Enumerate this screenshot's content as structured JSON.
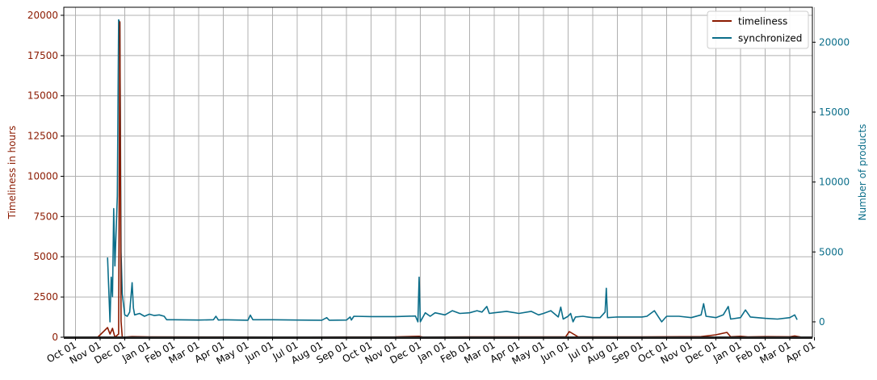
{
  "chart_data": {
    "type": "line",
    "title": "",
    "xlabel": "",
    "ylabel_left": "Timeliness in hours",
    "ylabel_right": "Number of products",
    "grid": true,
    "legend_position": "top-right",
    "x_ticks": [
      "Oct 01",
      "Nov 01",
      "Dec 01",
      "Jan 01",
      "Feb 01",
      "Mar 01",
      "Apr 01",
      "May 01",
      "Jun 01",
      "Jul 01",
      "Aug 01",
      "Sep 01",
      "Oct 01",
      "Nov 01",
      "Dec 01",
      "Jan 01",
      "Feb 01",
      "Mar 01",
      "Apr 01",
      "May 01",
      "Jun 01",
      "Jul 01",
      "Aug 01",
      "Sep 01",
      "Oct 01",
      "Nov 01",
      "Dec 01",
      "Jan 01",
      "Feb 01",
      "Mar 01",
      "Apr 01"
    ],
    "y_left": {
      "lim": [
        0,
        20500
      ],
      "ticks": [
        0,
        2500,
        5000,
        7500,
        10000,
        12500,
        15000,
        17500,
        20000
      ],
      "tick_labels": [
        "0",
        "2500",
        "5000",
        "7500",
        "10000",
        "12500",
        "15000",
        "17500",
        "20000"
      ],
      "color": "#8b1a00"
    },
    "y_right": {
      "lim": [
        -1100,
        22500
      ],
      "ticks": [
        0,
        5000,
        10000,
        15000,
        20000
      ],
      "tick_labels": [
        "0",
        "5000",
        "10000",
        "15000",
        "20000"
      ],
      "color": "#0b6e8a"
    },
    "series": [
      {
        "name": "timeliness",
        "axis": "left",
        "color": "#8b1a00",
        "points": [
          [
            0.9,
            0
          ],
          [
            1.3,
            600
          ],
          [
            1.4,
            200
          ],
          [
            1.5,
            550
          ],
          [
            1.6,
            0
          ],
          [
            1.75,
            200
          ],
          [
            1.8,
            19600
          ],
          [
            1.85,
            1000
          ],
          [
            1.9,
            0
          ],
          [
            2.3,
            40
          ],
          [
            3,
            20
          ],
          [
            6,
            15
          ],
          [
            8,
            10
          ],
          [
            11,
            15
          ],
          [
            13,
            20
          ],
          [
            13.95,
            60
          ],
          [
            14.1,
            10
          ],
          [
            16,
            20
          ],
          [
            18,
            25
          ],
          [
            19.9,
            20
          ],
          [
            20.05,
            350
          ],
          [
            20.4,
            30
          ],
          [
            21,
            20
          ],
          [
            23,
            25
          ],
          [
            25.4,
            40
          ],
          [
            26,
            150
          ],
          [
            26.45,
            300
          ],
          [
            26.6,
            30
          ],
          [
            27,
            60
          ],
          [
            27.3,
            20
          ],
          [
            28,
            40
          ],
          [
            29,
            30
          ],
          [
            29.2,
            80
          ],
          [
            29.5,
            0
          ]
        ]
      },
      {
        "name": "synchronized",
        "axis": "right",
        "color": "#0b6e8a",
        "points": [
          [
            1.3,
            4600
          ],
          [
            1.4,
            0
          ],
          [
            1.45,
            3200
          ],
          [
            1.5,
            1800
          ],
          [
            1.55,
            8100
          ],
          [
            1.6,
            4000
          ],
          [
            1.7,
            9000
          ],
          [
            1.75,
            21600
          ],
          [
            1.8,
            21400
          ],
          [
            1.85,
            5000
          ],
          [
            1.9,
            2000
          ],
          [
            2.0,
            500
          ],
          [
            2.1,
            400
          ],
          [
            2.2,
            700
          ],
          [
            2.3,
            2800
          ],
          [
            2.35,
            1000
          ],
          [
            2.4,
            500
          ],
          [
            2.6,
            600
          ],
          [
            2.8,
            400
          ],
          [
            3.0,
            550
          ],
          [
            3.2,
            450
          ],
          [
            3.4,
            500
          ],
          [
            3.6,
            400
          ],
          [
            3.7,
            150
          ],
          [
            4,
            150
          ],
          [
            5,
            130
          ],
          [
            5.6,
            150
          ],
          [
            5.7,
            400
          ],
          [
            5.8,
            130
          ],
          [
            6,
            150
          ],
          [
            7,
            120
          ],
          [
            7.1,
            480
          ],
          [
            7.2,
            150
          ],
          [
            8,
            150
          ],
          [
            9,
            130
          ],
          [
            10,
            120
          ],
          [
            10.2,
            300
          ],
          [
            10.3,
            120
          ],
          [
            11,
            130
          ],
          [
            11.15,
            350
          ],
          [
            11.2,
            130
          ],
          [
            11.3,
            400
          ],
          [
            12,
            380
          ],
          [
            13,
            380
          ],
          [
            13.8,
            420
          ],
          [
            13.9,
            0
          ],
          [
            13.95,
            3200
          ],
          [
            14.0,
            0
          ],
          [
            14.2,
            650
          ],
          [
            14.4,
            400
          ],
          [
            14.6,
            650
          ],
          [
            15,
            500
          ],
          [
            15.3,
            800
          ],
          [
            15.6,
            600
          ],
          [
            16,
            650
          ],
          [
            16.3,
            800
          ],
          [
            16.5,
            700
          ],
          [
            16.7,
            1100
          ],
          [
            16.8,
            600
          ],
          [
            17,
            650
          ],
          [
            17.5,
            750
          ],
          [
            18,
            600
          ],
          [
            18.5,
            750
          ],
          [
            18.8,
            500
          ],
          [
            19,
            600
          ],
          [
            19.3,
            800
          ],
          [
            19.6,
            350
          ],
          [
            19.7,
            1050
          ],
          [
            19.8,
            200
          ],
          [
            20,
            400
          ],
          [
            20.1,
            600
          ],
          [
            20.2,
            0
          ],
          [
            20.3,
            350
          ],
          [
            20.6,
            400
          ],
          [
            20.8,
            350
          ],
          [
            21,
            300
          ],
          [
            21.3,
            300
          ],
          [
            21.5,
            700
          ],
          [
            21.55,
            2400
          ],
          [
            21.6,
            300
          ],
          [
            22,
            350
          ],
          [
            23,
            350
          ],
          [
            23.2,
            400
          ],
          [
            23.5,
            800
          ],
          [
            23.8,
            0
          ],
          [
            24,
            400
          ],
          [
            24.5,
            400
          ],
          [
            25,
            300
          ],
          [
            25.4,
            500
          ],
          [
            25.5,
            1300
          ],
          [
            25.6,
            400
          ],
          [
            26,
            300
          ],
          [
            26.3,
            500
          ],
          [
            26.5,
            1100
          ],
          [
            26.6,
            200
          ],
          [
            27,
            300
          ],
          [
            27.2,
            850
          ],
          [
            27.4,
            350
          ],
          [
            28,
            250
          ],
          [
            28.5,
            200
          ],
          [
            29,
            300
          ],
          [
            29.2,
            500
          ],
          [
            29.3,
            150
          ]
        ]
      }
    ]
  }
}
